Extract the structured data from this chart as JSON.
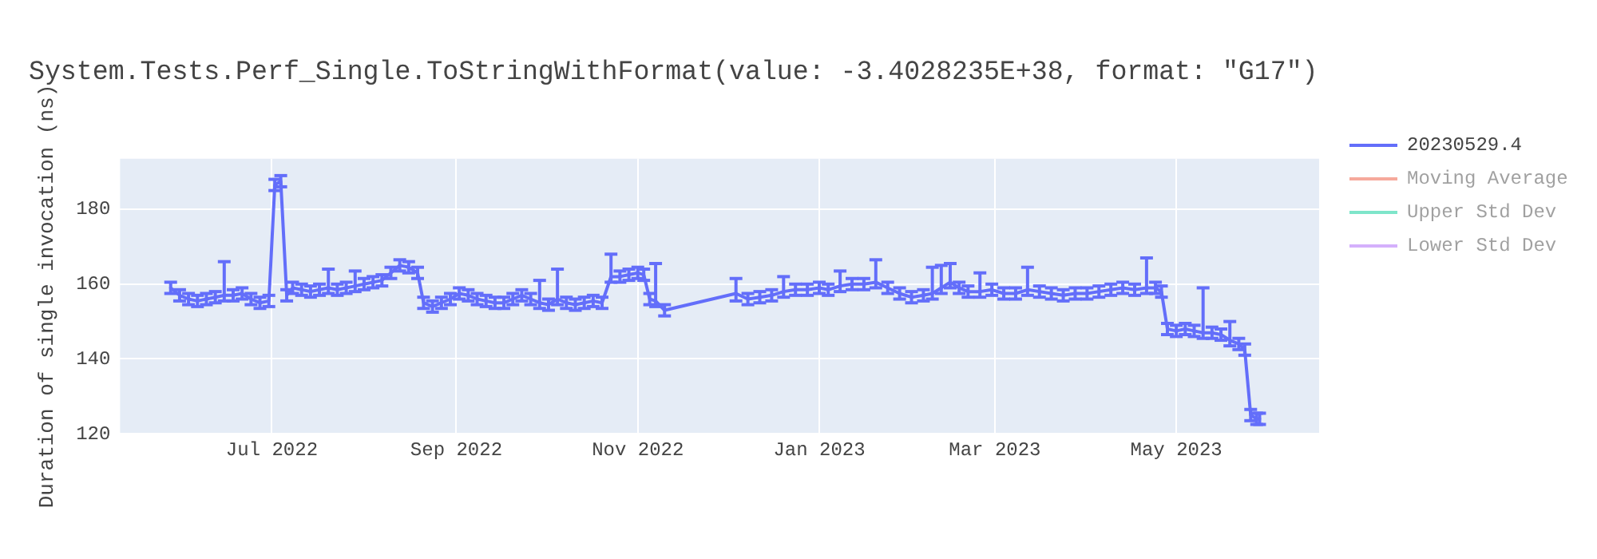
{
  "chart_data": {
    "type": "line",
    "title": "System.Tests.Perf_Single.ToStringWithFormat(value: -3.4028235E+38, format: \"G17\")",
    "ylabel": "Duration of single invocation (ns)",
    "xlim": [
      "2022-05-11",
      "2023-06-18"
    ],
    "xticks": [
      {
        "value": "2022-07-01",
        "label": "Jul 2022"
      },
      {
        "value": "2022-09-01",
        "label": "Sep 2022"
      },
      {
        "value": "2022-11-01",
        "label": "Nov 2022"
      },
      {
        "value": "2023-01-01",
        "label": "Jan 2023"
      },
      {
        "value": "2023-03-01",
        "label": "Mar 2023"
      },
      {
        "value": "2023-05-01",
        "label": "May 2023"
      }
    ],
    "ylim": [
      120,
      193.5
    ],
    "yticks": [
      120,
      140,
      160,
      180
    ],
    "grid": true,
    "legend": "top right",
    "line_style": "solid",
    "x": [
      "2022-05-28",
      "2022-05-31",
      "2022-06-03",
      "2022-06-06",
      "2022-06-09",
      "2022-06-12",
      "2022-06-15",
      "2022-06-18",
      "2022-06-21",
      "2022-06-24",
      "2022-06-27",
      "2022-06-30",
      "2022-07-02",
      "2022-07-04",
      "2022-07-06",
      "2022-07-08",
      "2022-07-11",
      "2022-07-14",
      "2022-07-17",
      "2022-07-20",
      "2022-07-23",
      "2022-07-26",
      "2022-07-29",
      "2022-08-01",
      "2022-08-04",
      "2022-08-07",
      "2022-08-10",
      "2022-08-13",
      "2022-08-16",
      "2022-08-19",
      "2022-08-21",
      "2022-08-24",
      "2022-08-27",
      "2022-08-30",
      "2022-09-02",
      "2022-09-05",
      "2022-09-08",
      "2022-09-11",
      "2022-09-14",
      "2022-09-17",
      "2022-09-20",
      "2022-09-23",
      "2022-09-26",
      "2022-09-29",
      "2022-10-02",
      "2022-10-05",
      "2022-10-08",
      "2022-10-11",
      "2022-10-14",
      "2022-10-17",
      "2022-10-20",
      "2022-10-23",
      "2022-10-26",
      "2022-10-29",
      "2022-11-01",
      "2022-11-03",
      "2022-11-05",
      "2022-11-07",
      "2022-11-10",
      "2022-12-04",
      "2022-12-08",
      "2022-12-12",
      "2022-12-16",
      "2022-12-20",
      "2022-12-24",
      "2022-12-28",
      "2023-01-01",
      "2023-01-04",
      "2023-01-08",
      "2023-01-12",
      "2023-01-16",
      "2023-01-20",
      "2023-01-24",
      "2023-01-28",
      "2023-02-01",
      "2023-02-05",
      "2023-02-08",
      "2023-02-11",
      "2023-02-14",
      "2023-02-17",
      "2023-02-20",
      "2023-02-24",
      "2023-02-28",
      "2023-03-04",
      "2023-03-08",
      "2023-03-12",
      "2023-03-16",
      "2023-03-20",
      "2023-03-24",
      "2023-03-28",
      "2023-04-01",
      "2023-04-05",
      "2023-04-09",
      "2023-04-13",
      "2023-04-17",
      "2023-04-21",
      "2023-04-24",
      "2023-04-26",
      "2023-04-28",
      "2023-05-01",
      "2023-05-04",
      "2023-05-07",
      "2023-05-10",
      "2023-05-13",
      "2023-05-16",
      "2023-05-19",
      "2023-05-22",
      "2023-05-24",
      "2023-05-26",
      "2023-05-28",
      "2023-05-29"
    ],
    "series": [
      {
        "name": "20230529.4",
        "color": "#636efa",
        "values": [
          159,
          157,
          156,
          155.5,
          156,
          156.5,
          157,
          157,
          157.5,
          156,
          155,
          155.5,
          186.5,
          187.5,
          157,
          159,
          158.5,
          158,
          158.5,
          159,
          158.5,
          159,
          159.5,
          160,
          160.5,
          161,
          163,
          165,
          164.5,
          163,
          155,
          154,
          155,
          156,
          157.5,
          157,
          156,
          155.5,
          155,
          155,
          156,
          157,
          156,
          155,
          154.5,
          156,
          155,
          154.5,
          155,
          155.5,
          155,
          162,
          162,
          162.5,
          163,
          162.5,
          156,
          155.5,
          153,
          157.5,
          156,
          156.5,
          157,
          158,
          158.5,
          158.5,
          159,
          158.5,
          159.5,
          160,
          160,
          160.5,
          159,
          157.5,
          156.5,
          157,
          157.5,
          159,
          160.5,
          159,
          158,
          158,
          158.5,
          157.5,
          157.5,
          158.5,
          158,
          157.5,
          157,
          157.5,
          157.5,
          158,
          158.5,
          159,
          158.5,
          159,
          159,
          158,
          148,
          147.5,
          148,
          147.5,
          147,
          147,
          146.5,
          145,
          144,
          142.5,
          125,
          124,
          124
        ],
        "errors": [
          1.5,
          1.5,
          1.5,
          1.5,
          1.5,
          1.5,
          [
            155.5,
            166
          ],
          1.5,
          1.5,
          1.5,
          1.5,
          1.5,
          1.5,
          1.5,
          1.5,
          1.5,
          1.5,
          1.5,
          1.5,
          [
            157.5,
            164
          ],
          1.5,
          1.5,
          [
            158,
            163.5
          ],
          1.5,
          1.5,
          1.5,
          1.5,
          1.5,
          1.5,
          1.5,
          1.5,
          1.5,
          1.5,
          1.5,
          1.5,
          1.5,
          1.5,
          1.5,
          1.5,
          1.5,
          1.5,
          1.5,
          1.5,
          [
            153.5,
            161
          ],
          1.5,
          [
            154.5,
            164
          ],
          1.5,
          1.5,
          1.5,
          1.5,
          1.5,
          [
            160.5,
            168
          ],
          1.5,
          1.5,
          1.5,
          1.5,
          1.5,
          [
            154,
            165.5
          ],
          1.5,
          [
            155.5,
            161.5
          ],
          1.5,
          1.5,
          1.5,
          [
            156.5,
            162
          ],
          1.5,
          1.5,
          1.5,
          1.5,
          [
            158,
            163.5
          ],
          1.5,
          1.5,
          [
            159,
            166.5
          ],
          1.5,
          1.5,
          1.5,
          1.5,
          [
            156,
            164.5
          ],
          [
            157.5,
            165
          ],
          [
            159,
            165.5
          ],
          1.5,
          1.5,
          [
            156.5,
            163
          ],
          1.5,
          1.5,
          1.5,
          [
            157,
            164.5
          ],
          1.5,
          1.5,
          1.5,
          1.5,
          1.5,
          1.5,
          1.5,
          1.5,
          1.5,
          [
            157.5,
            167
          ],
          1.5,
          1.5,
          1.5,
          1.5,
          1.5,
          1.5,
          [
            145.5,
            159
          ],
          1.5,
          1.5,
          [
            143.5,
            150
          ],
          1.5,
          1.5,
          1.5,
          1.5,
          1.5
        ]
      },
      {
        "name": "Moving Average",
        "color": "#ef553b",
        "values": [
          null,
          null,
          null,
          null,
          null,
          null,
          null,
          null,
          null,
          null,
          null,
          null,
          null,
          null,
          null,
          null,
          null,
          null,
          null,
          null,
          null,
          null,
          null,
          null,
          null,
          null,
          null,
          null,
          null,
          null,
          null,
          null,
          null,
          null,
          null,
          null,
          null,
          null,
          null,
          null,
          null,
          null,
          null,
          null,
          null,
          null,
          null,
          null,
          null,
          null,
          null,
          null,
          null,
          null,
          null,
          null,
          null,
          null,
          null,
          null,
          null,
          null,
          null,
          null,
          null,
          null,
          null,
          null,
          null,
          null,
          null,
          null,
          null,
          null,
          null,
          null,
          null,
          null,
          null,
          null,
          null,
          null,
          null,
          null,
          null,
          null,
          null,
          null,
          null,
          null,
          null,
          null,
          null,
          null,
          null,
          null,
          null,
          null,
          null,
          null,
          null,
          null,
          null,
          null,
          null,
          null,
          null,
          null,
          null,
          null,
          null
        ]
      },
      {
        "name": "Upper Std Dev",
        "color": "#00cc96",
        "values": [
          null,
          null,
          null,
          null,
          null,
          null,
          null,
          null,
          null,
          null,
          null,
          null,
          null,
          null,
          null,
          null,
          null,
          null,
          null,
          null,
          null,
          null,
          null,
          null,
          null,
          null,
          null,
          null,
          null,
          null,
          null,
          null,
          null,
          null,
          null,
          null,
          null,
          null,
          null,
          null,
          null,
          null,
          null,
          null,
          null,
          null,
          null,
          null,
          null,
          null,
          null,
          null,
          null,
          null,
          null,
          null,
          null,
          null,
          null,
          null,
          null,
          null,
          null,
          null,
          null,
          null,
          null,
          null,
          null,
          null,
          null,
          null,
          null,
          null,
          null,
          null,
          null,
          null,
          null,
          null,
          null,
          null,
          null,
          null,
          null,
          null,
          null,
          null,
          null,
          null,
          null,
          null,
          null,
          null,
          null,
          null,
          null,
          null,
          null,
          null,
          null,
          null,
          null,
          null,
          null,
          null,
          null,
          null,
          null,
          null,
          null
        ]
      },
      {
        "name": "Lower Std Dev",
        "color": "#ab63fa",
        "values": [
          null,
          null,
          null,
          null,
          null,
          null,
          null,
          null,
          null,
          null,
          null,
          null,
          null,
          null,
          null,
          null,
          null,
          null,
          null,
          null,
          null,
          null,
          null,
          null,
          null,
          null,
          null,
          null,
          null,
          null,
          null,
          null,
          null,
          null,
          null,
          null,
          null,
          null,
          null,
          null,
          null,
          null,
          null,
          null,
          null,
          null,
          null,
          null,
          null,
          null,
          null,
          null,
          null,
          null,
          null,
          null,
          null,
          null,
          null,
          null,
          null,
          null,
          null,
          null,
          null,
          null,
          null,
          null,
          null,
          null,
          null,
          null,
          null,
          null,
          null,
          null,
          null,
          null,
          null,
          null,
          null,
          null,
          null,
          null,
          null,
          null,
          null,
          null,
          null,
          null,
          null,
          null,
          null,
          null,
          null,
          null,
          null,
          null,
          null,
          null,
          null,
          null,
          null,
          null,
          null,
          null,
          null,
          null,
          null,
          null,
          null
        ]
      }
    ]
  }
}
